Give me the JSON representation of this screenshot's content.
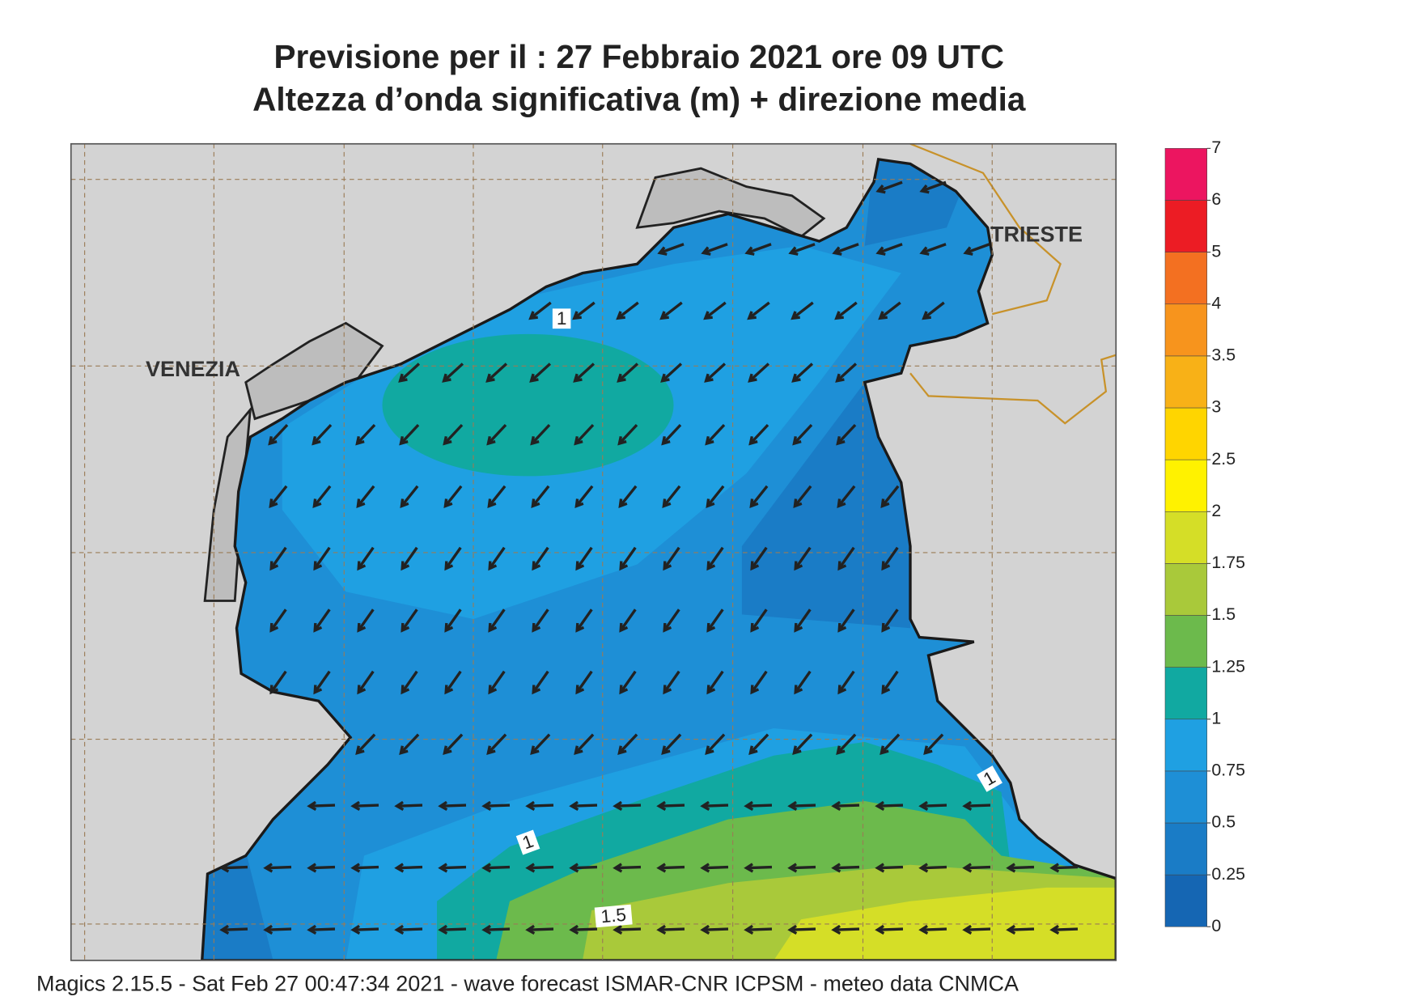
{
  "title": "Previsione per il  :  27  Febbraio 2021   ore 09 UTC",
  "subtitle": "Altezza d’onda significativa (m) + direzione media",
  "places": [
    "VENEZIA",
    "TRIESTE"
  ],
  "contour_labels": [
    1,
    1,
    1,
    1.5
  ],
  "legend": {
    "ticks": [
      0,
      0.25,
      0.5,
      0.75,
      1,
      1.25,
      1.5,
      1.75,
      2,
      2.5,
      3,
      3.5,
      4,
      5,
      6,
      7
    ],
    "colors": [
      "#1566b3",
      "#1a7cc6",
      "#1e8fd6",
      "#1fa0e2",
      "#11a9a1",
      "#6cba4c",
      "#a9c93a",
      "#d5de27",
      "#fff200",
      "#ffd500",
      "#f8b117",
      "#f7941d",
      "#f37021",
      "#ec1c24",
      "#ec1560"
    ]
  },
  "footer": "Magics 2.15.5 - Sat Feb 27 00:47:34 2021 - wave forecast  ISMAR-CNR  ICPSM - meteo data   CNMCA"
}
